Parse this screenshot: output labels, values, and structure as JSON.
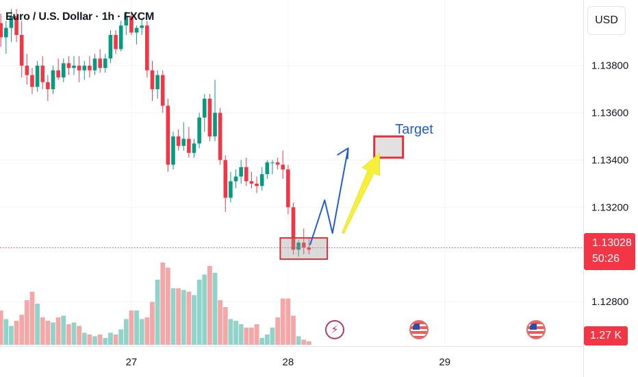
{
  "header": {
    "title": "Euro / U.S. Dollar · 1h · FXCM",
    "currency": "USD"
  },
  "price_badge": {
    "price": "1.13028",
    "countdown": "50:26"
  },
  "volume_badge": {
    "value": "1.27 K"
  },
  "annotation": {
    "target_label": "Target"
  },
  "icons": {
    "lightning": "lightning-icon",
    "flag": "us-flag-icon"
  },
  "colors": {
    "up": "#089981",
    "down": "#f23645",
    "vol_up": "#8fd3c9",
    "vol_down": "#f5a7a7",
    "arrow_blue": "#1e5bd8",
    "arrow_yellow": "#f7f03a",
    "target_box": "#e0303a",
    "grid": "#f0f3fa"
  },
  "chart_data": {
    "type": "candlestick",
    "symbol": "Euro / U.S. Dollar",
    "timeframe": "1h",
    "y_ticks": [
      1.128,
      1.132,
      1.134,
      1.136,
      1.138
    ],
    "y_tick_labels": [
      "1.12800",
      "1.13200",
      "1.13400",
      "1.13600",
      "1.13800"
    ],
    "ylim": [
      1.1262,
      1.1402
    ],
    "x_ticks": [
      {
        "label": "27",
        "bar": 25
      },
      {
        "label": "28",
        "bar": 55
      },
      {
        "label": "29",
        "bar": 85
      }
    ],
    "current_price": 1.13028,
    "candles": [
      [
        1.1398,
        1.1402,
        1.1388,
        1.1392
      ],
      [
        1.1392,
        1.1399,
        1.1385,
        1.1396
      ],
      [
        1.1396,
        1.1404,
        1.139,
        1.1401
      ],
      [
        1.1401,
        1.1404,
        1.139,
        1.1393
      ],
      [
        1.1393,
        1.1399,
        1.1375,
        1.138
      ],
      [
        1.138,
        1.1385,
        1.1372,
        1.1376
      ],
      [
        1.1376,
        1.1379,
        1.1368,
        1.1371
      ],
      [
        1.1371,
        1.1382,
        1.1369,
        1.138
      ],
      [
        1.138,
        1.1384,
        1.137,
        1.1373
      ],
      [
        1.1373,
        1.1376,
        1.1365,
        1.137
      ],
      [
        1.137,
        1.138,
        1.1368,
        1.1378
      ],
      [
        1.1378,
        1.1383,
        1.1374,
        1.1375
      ],
      [
        1.1375,
        1.1383,
        1.1373,
        1.1381
      ],
      [
        1.1381,
        1.1384,
        1.1376,
        1.1379
      ],
      [
        1.1379,
        1.1384,
        1.1376,
        1.138
      ],
      [
        1.138,
        1.1384,
        1.1373,
        1.1378
      ],
      [
        1.1378,
        1.1382,
        1.1374,
        1.138
      ],
      [
        1.138,
        1.1384,
        1.1375,
        1.1378
      ],
      [
        1.1378,
        1.1385,
        1.1376,
        1.1383
      ],
      [
        1.1383,
        1.1387,
        1.1377,
        1.1379
      ],
      [
        1.1379,
        1.1385,
        1.1377,
        1.1383
      ],
      [
        1.1383,
        1.1395,
        1.1381,
        1.1393
      ],
      [
        1.1393,
        1.1395,
        1.1385,
        1.1387
      ],
      [
        1.1387,
        1.1399,
        1.1386,
        1.1397
      ],
      [
        1.1397,
        1.1403,
        1.1393,
        1.1401
      ],
      [
        1.1401,
        1.1403,
        1.1393,
        1.1394
      ],
      [
        1.1394,
        1.1397,
        1.1389,
        1.1396
      ],
      [
        1.1396,
        1.14,
        1.1393,
        1.1397
      ],
      [
        1.1397,
        1.1399,
        1.1375,
        1.1378
      ],
      [
        1.1378,
        1.1382,
        1.1365,
        1.137
      ],
      [
        1.137,
        1.1378,
        1.1366,
        1.1376
      ],
      [
        1.1376,
        1.1378,
        1.136,
        1.1363
      ],
      [
        1.1363,
        1.1366,
        1.1335,
        1.1338
      ],
      [
        1.1338,
        1.1352,
        1.1336,
        1.135
      ],
      [
        1.135,
        1.1353,
        1.1344,
        1.1346
      ],
      [
        1.1346,
        1.1356,
        1.1344,
        1.1349
      ],
      [
        1.1349,
        1.1354,
        1.1341,
        1.1343
      ],
      [
        1.1343,
        1.1349,
        1.1341,
        1.1347
      ],
      [
        1.1347,
        1.136,
        1.1345,
        1.1358
      ],
      [
        1.1358,
        1.1368,
        1.1352,
        1.1366
      ],
      [
        1.1366,
        1.1368,
        1.1348,
        1.135
      ],
      [
        1.135,
        1.1374,
        1.1348,
        1.136
      ],
      [
        1.136,
        1.1362,
        1.1338,
        1.134
      ],
      [
        1.134,
        1.1342,
        1.1318,
        1.1324
      ],
      [
        1.1324,
        1.1335,
        1.1322,
        1.1331
      ],
      [
        1.1331,
        1.1336,
        1.1328,
        1.1333
      ],
      [
        1.1333,
        1.134,
        1.133,
        1.1337
      ],
      [
        1.1337,
        1.1341,
        1.1329,
        1.1331
      ],
      [
        1.1331,
        1.1335,
        1.1328,
        1.133
      ],
      [
        1.133,
        1.1333,
        1.1326,
        1.1329
      ],
      [
        1.1329,
        1.1337,
        1.1327,
        1.1334
      ],
      [
        1.1334,
        1.134,
        1.1332,
        1.1339
      ],
      [
        1.1339,
        1.134,
        1.1334,
        1.1339
      ],
      [
        1.1339,
        1.1341,
        1.1336,
        1.1338
      ],
      [
        1.1338,
        1.1344,
        1.1332,
        1.1336
      ],
      [
        1.1336,
        1.1338,
        1.1317,
        1.132
      ],
      [
        1.132,
        1.1322,
        1.13,
        1.1302
      ],
      [
        1.1302,
        1.1306,
        1.1299,
        1.1305
      ],
      [
        1.1305,
        1.1311,
        1.13,
        1.1303
      ],
      [
        1.1303,
        1.1307,
        1.13,
        1.1302
      ]
    ],
    "volumes": [
      0.4,
      0.3,
      0.22,
      0.28,
      0.35,
      0.52,
      0.62,
      0.48,
      0.32,
      0.28,
      0.26,
      0.32,
      0.34,
      0.24,
      0.26,
      0.22,
      0.14,
      0.12,
      0.1,
      0.12,
      0.08,
      0.14,
      0.12,
      0.18,
      0.3,
      0.4,
      0.4,
      0.3,
      0.32,
      0.5,
      0.76,
      0.96,
      0.9,
      0.66,
      0.66,
      0.64,
      0.62,
      0.58,
      0.76,
      0.82,
      0.92,
      0.84,
      0.52,
      0.44,
      0.3,
      0.28,
      0.24,
      0.2,
      0.2,
      0.24,
      0.08,
      0.12,
      0.2,
      0.32,
      0.54,
      0.54,
      0.34,
      0.1,
      0.06,
      0.04
    ],
    "vol_max_label": "1.27 K",
    "annotations": {
      "support_box": {
        "bar_from": 53.5,
        "bar_to": 62.5,
        "price_from": 1.1298,
        "price_to": 1.1307
      },
      "target_box": {
        "bar_from": 71.5,
        "bar_to": 77,
        "price_from": 1.1341,
        "price_to": 1.135,
        "label": "Target"
      },
      "projection_path": [
        [
          59.2,
          1.1304
        ],
        [
          62,
          1.1323
        ],
        [
          63.5,
          1.1309
        ],
        [
          66.5,
          1.1345
        ],
        [
          67.5,
          1.1342
        ],
        [
          67.5,
          1.1348
        ]
      ],
      "yellow_arrow": {
        "from": [
          65.5,
          1.1309
        ],
        "to": [
          72.5,
          1.1343
        ]
      }
    }
  }
}
